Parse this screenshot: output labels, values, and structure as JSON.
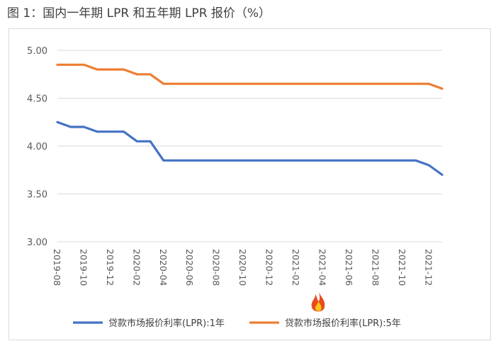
{
  "figure_title": "图 1：国内一年期 LPR 和五年期 LPR 报价（%）",
  "chart_data": {
    "type": "line",
    "title": "",
    "xlabel": "",
    "ylabel": "",
    "ylim": [
      3.0,
      5.0
    ],
    "yticks": [
      "5.00",
      "4.50",
      "4.00",
      "3.50",
      "3.00"
    ],
    "grid": "horizontal",
    "legend": "bottom",
    "x": [
      "2019-08",
      "2019-09",
      "2019-10",
      "2019-11",
      "2019-12",
      "2020-01",
      "2020-02",
      "2020-03",
      "2020-04",
      "2020-05",
      "2020-06",
      "2020-07",
      "2020-08",
      "2020-09",
      "2020-10",
      "2020-11",
      "2020-12",
      "2021-01",
      "2021-02",
      "2021-03",
      "2021-04",
      "2021-05",
      "2021-06",
      "2021-07",
      "2021-08",
      "2021-09",
      "2021-10",
      "2021-11",
      "2021-12",
      "2022-01"
    ],
    "xtick_labels": [
      "2019-08",
      "2019-10",
      "2019-12",
      "2020-02",
      "2020-04",
      "2020-06",
      "2020-08",
      "2020-10",
      "2020-12",
      "2021-02",
      "2021-04",
      "2021-06",
      "2021-08",
      "2021-10",
      "2021-12"
    ],
    "series": [
      {
        "name": "贷款市场报价利率(LPR):1年",
        "color": "#4472c4",
        "values": [
          4.25,
          4.2,
          4.2,
          4.15,
          4.15,
          4.15,
          4.05,
          4.05,
          3.85,
          3.85,
          3.85,
          3.85,
          3.85,
          3.85,
          3.85,
          3.85,
          3.85,
          3.85,
          3.85,
          3.85,
          3.85,
          3.85,
          3.85,
          3.85,
          3.85,
          3.85,
          3.85,
          3.85,
          3.8,
          3.7
        ]
      },
      {
        "name": "贷款市场报价利率(LPR):5年",
        "color": "#ed7d31",
        "values": [
          4.85,
          4.85,
          4.85,
          4.8,
          4.8,
          4.8,
          4.75,
          4.75,
          4.65,
          4.65,
          4.65,
          4.65,
          4.65,
          4.65,
          4.65,
          4.65,
          4.65,
          4.65,
          4.65,
          4.65,
          4.65,
          4.65,
          4.65,
          4.65,
          4.65,
          4.65,
          4.65,
          4.65,
          4.65,
          4.6
        ]
      }
    ]
  }
}
